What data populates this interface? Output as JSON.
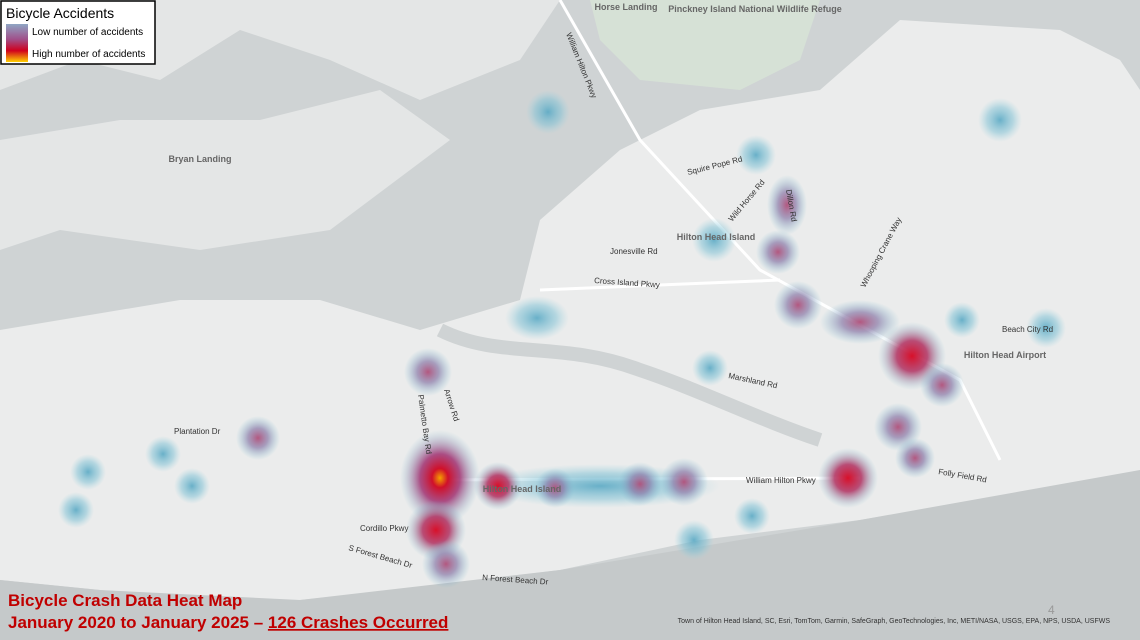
{
  "legend": {
    "title": "Bicycle Accidents",
    "items": [
      "Low number of accidents",
      "High number of accidents"
    ]
  },
  "place_labels": [
    "Horse Landing",
    "Bryan Landing",
    "Hilton Head Island",
    "Hilton Head Airport",
    "Hilton Head Island",
    "Pinckney Island National Wildlife Refuge"
  ],
  "road_labels": [
    "William Hilton Pkwy",
    "Squire Pope Rd",
    "Wild Horse Rd",
    "Dillon Rd",
    "Jonesville Rd",
    "Cross Island Pkwy",
    "Whooping Crane Way",
    "Beach City Rd",
    "Marshland Rd",
    "Palmetto Bay Rd",
    "Arrow Rd",
    "Plantation Dr",
    "Cordillo Pkwy",
    "S Forest Beach Dr",
    "N Forest Beach Dr",
    "William Hilton Pkwy",
    "Folly Field Rd"
  ],
  "caption": {
    "line1": "Bicycle Crash Data Heat Map",
    "line2": "January 2020 to January 2025 –",
    "line2_link": "126 Crashes Occurred"
  },
  "attribution": "Town of Hilton Head Island, SC, Esri, TomTom, Garmin, SafeGraph, GeoTechnologies, Inc, METI/NASA, USGS, EPA, NPS, USDA, USFWS",
  "page_number": "4"
}
